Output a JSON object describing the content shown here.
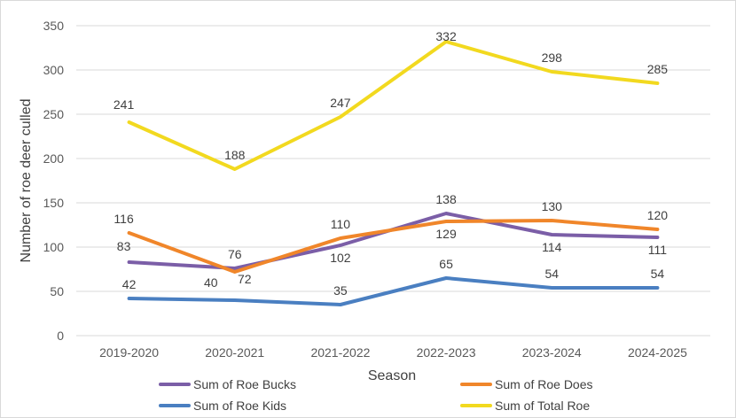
{
  "chart_data": {
    "type": "line",
    "title": "",
    "xlabel": "Season",
    "ylabel": "Number of roe deer culled",
    "ylim": [
      0,
      350
    ],
    "yticks": [
      0,
      50,
      100,
      150,
      200,
      250,
      300,
      350
    ],
    "grid": true,
    "legend_position": "bottom",
    "categories": [
      "2019-2020",
      "2020-2021",
      "2021-2022",
      "2022-2023",
      "2023-2024",
      "2024-2025"
    ],
    "series": [
      {
        "name": "Sum of Roe Bucks",
        "color": "#7b5ea7",
        "values": [
          83,
          76,
          102,
          138,
          114,
          111
        ]
      },
      {
        "name": "Sum of Roe Does",
        "color": "#f0862a",
        "values": [
          116,
          72,
          110,
          129,
          130,
          120
        ]
      },
      {
        "name": "Sum of Roe Kids",
        "color": "#4a7fc1",
        "values": [
          42,
          40,
          35,
          65,
          54,
          54
        ]
      },
      {
        "name": "Sum of Total Roe",
        "color": "#f2d91f",
        "values": [
          241,
          188,
          247,
          332,
          298,
          285
        ]
      }
    ]
  }
}
